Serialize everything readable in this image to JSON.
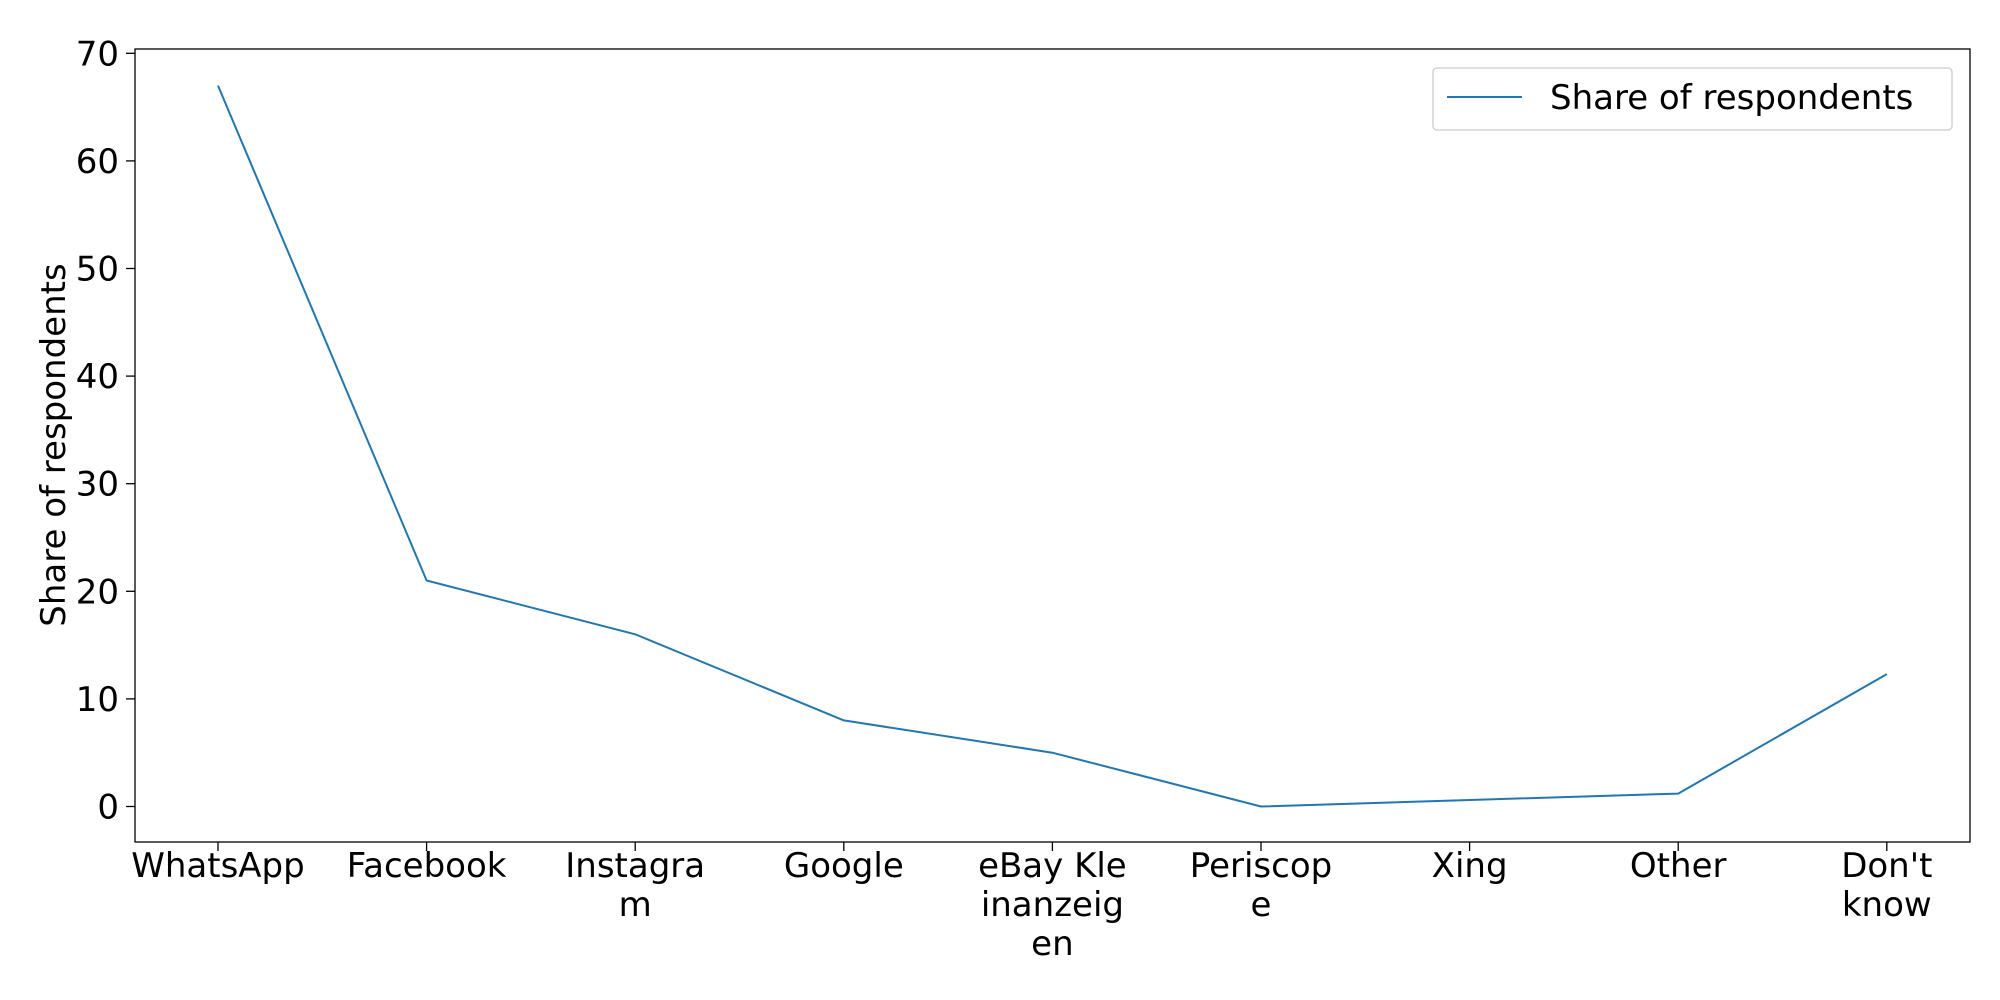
{
  "chart_data": {
    "type": "line",
    "categories": [
      [
        "WhatsApp"
      ],
      [
        "Facebook"
      ],
      [
        "Instagra",
        "m"
      ],
      [
        "Google"
      ],
      [
        "eBay Kle",
        "inanzeig",
        "en"
      ],
      [
        "Periscop",
        "e"
      ],
      [
        "Xing"
      ],
      [
        "Other"
      ],
      [
        "Don't",
        "know"
      ]
    ],
    "series": [
      {
        "name": "Share of respondents",
        "values": [
          67,
          21,
          16,
          8,
          5,
          0,
          0.6,
          1.2,
          12.3
        ],
        "color": "#1f77b4"
      }
    ],
    "ylabel": "Share of respondents",
    "ylim": [
      -3.3,
      70.4
    ],
    "yticks": [
      0,
      10,
      20,
      30,
      40,
      50,
      60,
      70
    ],
    "grid": false,
    "legend": "top-right"
  }
}
